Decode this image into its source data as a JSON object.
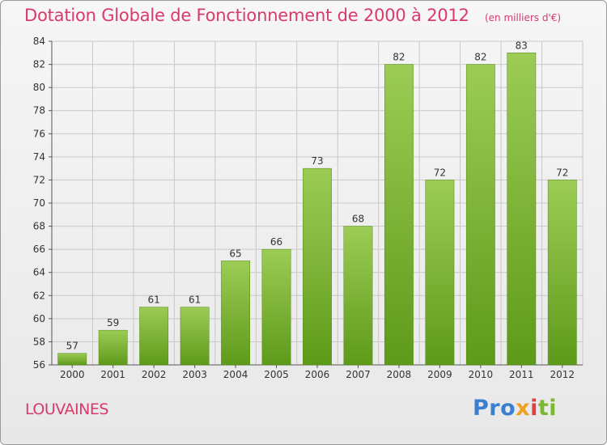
{
  "header": {
    "title": "Dotation Globale de Fonctionnement de 2000 à 2012",
    "subtitle": "(en milliers d'€)"
  },
  "footer": {
    "place": "LOUVAINES",
    "logo_text": "Proxiti"
  },
  "colors": {
    "title": "#d83a6a",
    "bar_light": "#9ccc55",
    "bar_dark": "#5e9a1a",
    "grid": "#c8c8c8"
  },
  "chart_data": {
    "type": "bar",
    "title": "Dotation Globale de Fonctionnement de 2000 à 2012",
    "subtitle": "(en milliers d'€)",
    "xlabel": "",
    "ylabel": "",
    "categories": [
      "2000",
      "2001",
      "2002",
      "2003",
      "2004",
      "2005",
      "2006",
      "2007",
      "2008",
      "2009",
      "2010",
      "2011",
      "2012"
    ],
    "values": [
      57,
      59,
      61,
      61,
      65,
      66,
      73,
      68,
      82,
      72,
      82,
      83,
      72
    ],
    "ylim": [
      56,
      84
    ],
    "yticks": [
      56,
      58,
      60,
      62,
      64,
      66,
      68,
      70,
      72,
      74,
      76,
      78,
      80,
      82,
      84
    ],
    "grid": true,
    "data_labels": true
  }
}
